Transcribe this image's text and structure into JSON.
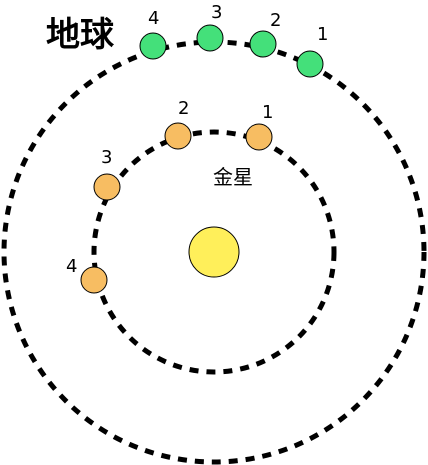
{
  "labels": {
    "earth": "地球",
    "venus": "金星"
  },
  "earth_positions": [
    "1",
    "2",
    "3",
    "4"
  ],
  "venus_positions": [
    "1",
    "2",
    "3",
    "4"
  ],
  "colors": {
    "sun": "#ffef5a",
    "earth": "#44e07a",
    "venus": "#f7bd62",
    "orbit": "#000000"
  }
}
